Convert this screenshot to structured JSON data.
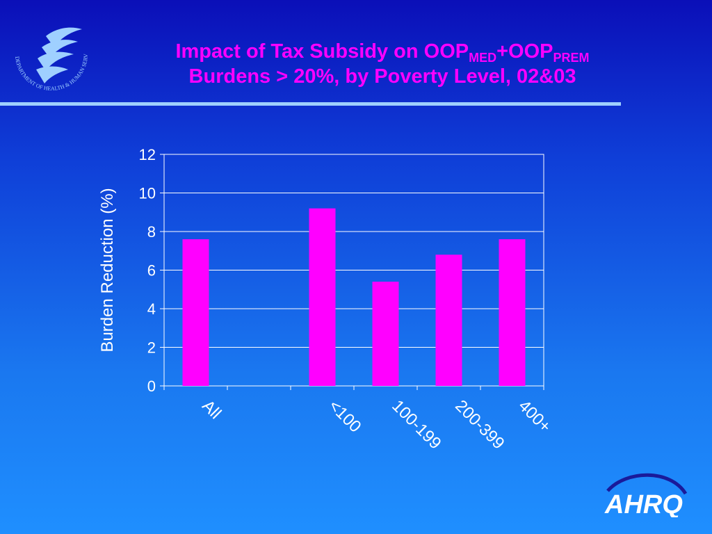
{
  "slide": {
    "title_line1_main": "Impact of Tax Subsidy on OOP",
    "title_sub1": "MED",
    "title_plus": "+OOP",
    "title_sub2": "PREM",
    "title_line2": "Burdens > 20%, by Poverty Level, 02&03",
    "hhs_logo_text": "DEPARTMENT OF HEALTH & HUMAN SERVICES · USA",
    "ahrq_logo_text": "AHRQ"
  },
  "colors": {
    "bar": "#ff00ff",
    "title": "#ff00ff",
    "axis_text": "#ffffff",
    "gridline": "#ffffff",
    "divider": "#9fd0ff"
  },
  "chart_data": {
    "type": "bar",
    "categories": [
      "All",
      "",
      "<100",
      "100-199",
      "200-399",
      "400+"
    ],
    "values": [
      7.6,
      0,
      9.2,
      5.4,
      6.8,
      7.6
    ],
    "title": "",
    "xlabel": "",
    "ylabel": "Burden Reduction (%)",
    "ylim": [
      0,
      12
    ],
    "yticks": [
      0,
      2,
      4,
      6,
      8,
      10,
      12
    ],
    "grid": true,
    "legend": "none"
  }
}
